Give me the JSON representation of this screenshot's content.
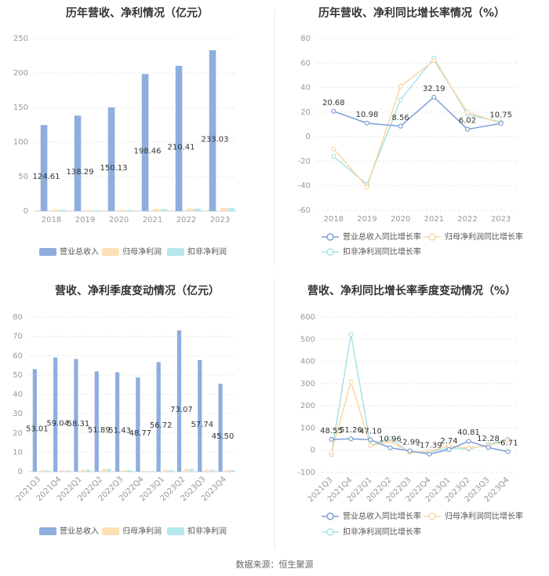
{
  "source": "数据来源：恒生聚源",
  "colors": {
    "revenue": "#8eaedd",
    "net_profit": "#fde0b5",
    "deducted_profit": "#b4e8ea",
    "line_revenue": "#7d9fd6",
    "line_net": "#fbd6a5",
    "line_deducted": "#a6e3e7"
  },
  "chart_data": [
    {
      "type": "bar",
      "title": "历年营收、净利情况（亿元）",
      "categories": [
        "2018",
        "2019",
        "2020",
        "2021",
        "2022",
        "2023"
      ],
      "ylim": [
        0,
        250
      ],
      "yticks": [
        0,
        50,
        100,
        150,
        200,
        250
      ],
      "series": [
        {
          "name": "营业总收入",
          "values": [
            124.61,
            138.29,
            150.13,
            198.46,
            210.41,
            233.03
          ],
          "labels": [
            "124.61",
            "138.29",
            "150.13",
            "198.46",
            "210.41",
            "233.03"
          ]
        },
        {
          "name": "归母净利润",
          "values": [
            2.0,
            1.6,
            1.8,
            3.2,
            3.8,
            4.6
          ]
        },
        {
          "name": "扣非净利润",
          "values": [
            1.9,
            1.4,
            1.7,
            3.0,
            3.6,
            4.4
          ]
        }
      ]
    },
    {
      "type": "line",
      "title": "历年营收、净利同比增长率情况（%）",
      "categories": [
        "2018",
        "2019",
        "2020",
        "2021",
        "2022",
        "2023"
      ],
      "ylim": [
        -60,
        80
      ],
      "yticks": [
        -60,
        -40,
        -20,
        0,
        20,
        40,
        60,
        80
      ],
      "series": [
        {
          "name": "营业总收入同比增长率",
          "values": [
            20.68,
            10.98,
            8.56,
            32.19,
            6.02,
            10.75
          ],
          "labels": [
            "20.68",
            "10.98",
            "8.56",
            "32.19",
            "6.02",
            "10.75"
          ]
        },
        {
          "name": "归母净利润同比增长率",
          "values": [
            -10,
            -41,
            41,
            62,
            20,
            11
          ]
        },
        {
          "name": "扣非净利润同比增长率",
          "values": [
            -16,
            -39,
            30,
            64,
            18,
            12
          ]
        }
      ]
    },
    {
      "type": "bar",
      "title": "营收、净利季度变动情况（亿元）",
      "categories": [
        "2021Q3",
        "2021Q4",
        "2022Q1",
        "2022Q2",
        "2022Q3",
        "2022Q4",
        "2023Q1",
        "2023Q2",
        "2023Q3",
        "2023Q4"
      ],
      "ylim": [
        0,
        80
      ],
      "yticks": [
        0,
        10,
        20,
        30,
        40,
        50,
        60,
        70,
        80
      ],
      "series": [
        {
          "name": "营业总收入",
          "values": [
            53.01,
            59.04,
            58.31,
            51.89,
            51.43,
            48.77,
            56.72,
            73.07,
            57.74,
            45.5
          ],
          "labels": [
            "53.01",
            "59.04",
            "58.31",
            "51.89",
            "51.43",
            "48.77",
            "56.72",
            "73.07",
            "57.74",
            "45.50"
          ]
        },
        {
          "name": "归母净利润",
          "values": [
            0.7,
            0.6,
            1.0,
            1.4,
            0.8,
            0.3,
            0.9,
            1.5,
            1.0,
            0.8
          ]
        },
        {
          "name": "扣非净利润",
          "values": [
            0.7,
            0.6,
            0.9,
            1.4,
            0.8,
            0.3,
            0.9,
            1.4,
            0.9,
            0.8
          ]
        }
      ]
    },
    {
      "type": "line",
      "title": "营收、净利同比增长率季度变动情况（%）",
      "categories": [
        "2021Q3",
        "2021Q4",
        "2022Q1",
        "2022Q2",
        "2022Q3",
        "2022Q4",
        "2023Q1",
        "2023Q2",
        "2023Q3",
        "2023Q4"
      ],
      "ylim": [
        -100,
        600
      ],
      "yticks": [
        -100,
        0,
        100,
        200,
        300,
        400,
        500,
        600
      ],
      "series": [
        {
          "name": "营业总收入同比增长率",
          "values": [
            48.55,
            51.26,
            47.1,
            10.96,
            -2.99,
            -17.39,
            2.74,
            40.81,
            12.28,
            -6.71
          ],
          "labels": [
            "48.55",
            "51.26",
            "47.10",
            "10.96",
            "-2.99",
            "-17.39",
            "2.74",
            "40.81",
            "12.28",
            "-6.71"
          ]
        },
        {
          "name": "归母净利润同比增长率",
          "values": [
            -10,
            308,
            20,
            40,
            -10,
            -5,
            20,
            10,
            20,
            45
          ]
        },
        {
          "name": "扣非净利润同比增长率",
          "values": [
            -20,
            522,
            20,
            55,
            -10,
            -8,
            10,
            5,
            25,
            50
          ]
        }
      ]
    }
  ]
}
